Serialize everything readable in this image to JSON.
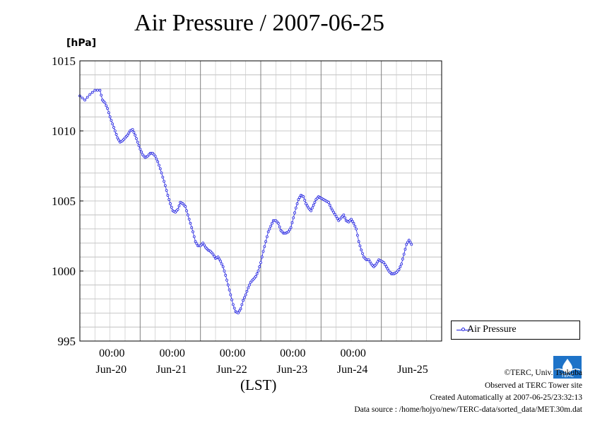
{
  "chart_data": {
    "type": "line",
    "title": "Air Pressure / 2007-06-25",
    "ylabel": "[hPa]",
    "xlabel": "(LST)",
    "ylim": [
      995,
      1015
    ],
    "yticks": [
      995,
      1000,
      1005,
      1010,
      1015
    ],
    "xlim_hours": [
      0,
      144
    ],
    "x_unit": "hours from 2007-06-19 12:00 LST",
    "xticks": [
      {
        "hour": 24,
        "time": "00:00",
        "date": "Jun-20"
      },
      {
        "hour": 48,
        "time": "00:00",
        "date": "Jun-21"
      },
      {
        "hour": 72,
        "time": "00:00",
        "date": "Jun-22"
      },
      {
        "hour": 96,
        "time": "00:00",
        "date": "Jun-23"
      },
      {
        "hour": 120,
        "time": "00:00",
        "date": "Jun-24"
      },
      {
        "hour": 144,
        "time": "",
        "date": "Jun-25"
      }
    ],
    "grid": true,
    "legend_position": "bottom-right",
    "series": [
      {
        "name": "Air Pressure",
        "color": "#1f1fe0",
        "points": [
          [
            0,
            1012.5
          ],
          [
            2,
            1012.2
          ],
          [
            4,
            1012.6
          ],
          [
            6,
            1012.9
          ],
          [
            8,
            1012.9
          ],
          [
            9,
            1012.2
          ],
          [
            10,
            1012.0
          ],
          [
            11,
            1011.6
          ],
          [
            12,
            1011.0
          ],
          [
            13,
            1010.5
          ],
          [
            14,
            1010.0
          ],
          [
            15,
            1009.5
          ],
          [
            16,
            1009.2
          ],
          [
            17,
            1009.3
          ],
          [
            18,
            1009.5
          ],
          [
            19,
            1009.7
          ],
          [
            20,
            1010.0
          ],
          [
            21,
            1010.1
          ],
          [
            22,
            1009.7
          ],
          [
            23,
            1009.2
          ],
          [
            24,
            1008.7
          ],
          [
            25,
            1008.3
          ],
          [
            26,
            1008.1
          ],
          [
            27,
            1008.2
          ],
          [
            28,
            1008.4
          ],
          [
            29,
            1008.4
          ],
          [
            30,
            1008.2
          ],
          [
            31,
            1007.8
          ],
          [
            32,
            1007.3
          ],
          [
            33,
            1006.7
          ],
          [
            34,
            1006.1
          ],
          [
            35,
            1005.4
          ],
          [
            36,
            1004.8
          ],
          [
            37,
            1004.3
          ],
          [
            38,
            1004.2
          ],
          [
            39,
            1004.4
          ],
          [
            40,
            1004.9
          ],
          [
            41,
            1004.8
          ],
          [
            42,
            1004.6
          ],
          [
            43,
            1004.0
          ],
          [
            44,
            1003.4
          ],
          [
            45,
            1002.8
          ],
          [
            46,
            1002.1
          ],
          [
            47,
            1001.8
          ],
          [
            48,
            1001.8
          ],
          [
            49,
            1002.0
          ],
          [
            50,
            1001.7
          ],
          [
            51,
            1001.5
          ],
          [
            52,
            1001.4
          ],
          [
            53,
            1001.2
          ],
          [
            54,
            1000.9
          ],
          [
            55,
            1001.0
          ],
          [
            56,
            1000.7
          ],
          [
            57,
            1000.3
          ],
          [
            58,
            999.7
          ],
          [
            59,
            999.0
          ],
          [
            60,
            998.3
          ],
          [
            61,
            997.6
          ],
          [
            62,
            997.1
          ],
          [
            63,
            997.0
          ],
          [
            64,
            997.3
          ],
          [
            65,
            997.9
          ],
          [
            66,
            998.3
          ],
          [
            67,
            998.8
          ],
          [
            68,
            999.2
          ],
          [
            69,
            999.4
          ],
          [
            70,
            999.6
          ],
          [
            71,
            1000.0
          ],
          [
            72,
            1000.6
          ],
          [
            73,
            1001.4
          ],
          [
            74,
            1002.1
          ],
          [
            75,
            1002.8
          ],
          [
            76,
            1003.2
          ],
          [
            77,
            1003.6
          ],
          [
            78,
            1003.6
          ],
          [
            79,
            1003.4
          ],
          [
            80,
            1002.9
          ],
          [
            81,
            1002.7
          ],
          [
            82,
            1002.7
          ],
          [
            83,
            1002.8
          ],
          [
            84,
            1003.1
          ],
          [
            85,
            1003.8
          ],
          [
            86,
            1004.5
          ],
          [
            87,
            1005.1
          ],
          [
            88,
            1005.4
          ],
          [
            89,
            1005.3
          ],
          [
            90,
            1004.8
          ],
          [
            91,
            1004.5
          ],
          [
            92,
            1004.3
          ],
          [
            93,
            1004.7
          ],
          [
            94,
            1005.1
          ],
          [
            95,
            1005.3
          ],
          [
            96,
            1005.2
          ],
          [
            97,
            1005.1
          ],
          [
            98,
            1005.0
          ],
          [
            99,
            1004.9
          ],
          [
            100,
            1004.5
          ],
          [
            101,
            1004.2
          ],
          [
            102,
            1003.9
          ],
          [
            103,
            1003.6
          ],
          [
            104,
            1003.8
          ],
          [
            105,
            1004.0
          ],
          [
            106,
            1003.6
          ],
          [
            107,
            1003.5
          ],
          [
            108,
            1003.7
          ],
          [
            109,
            1003.4
          ],
          [
            110,
            1003.0
          ],
          [
            111,
            1002.1
          ],
          [
            112,
            1001.5
          ],
          [
            113,
            1001.0
          ],
          [
            114,
            1000.8
          ],
          [
            115,
            1000.8
          ],
          [
            116,
            1000.5
          ],
          [
            117,
            1000.3
          ],
          [
            118,
            1000.5
          ],
          [
            119,
            1000.8
          ],
          [
            120,
            1000.7
          ],
          [
            121,
            1000.6
          ],
          [
            122,
            1000.3
          ],
          [
            123,
            1000.0
          ],
          [
            124,
            999.8
          ],
          [
            125,
            999.8
          ],
          [
            126,
            999.9
          ],
          [
            127,
            1000.1
          ],
          [
            128,
            1000.5
          ],
          [
            129,
            1001.2
          ],
          [
            130,
            1001.9
          ],
          [
            131,
            1002.2
          ],
          [
            132,
            1001.9
          ]
        ]
      }
    ]
  },
  "title": "Air Pressure / 2007-06-25",
  "unit_label": "[hPa]",
  "axis_time_label": "(LST)",
  "legend": {
    "label": "Air Pressure"
  },
  "credits": {
    "copyright": "©TERC, Univ. Tsukuba",
    "observed": "Observed at TERC Tower site",
    "created": "Created Automatically at 2007-06-25/23:32:13",
    "source": "Data source : /home/hojyo/new/TERC-data/sorted_data/MET.30m.dat"
  },
  "logo_text": "TERC"
}
